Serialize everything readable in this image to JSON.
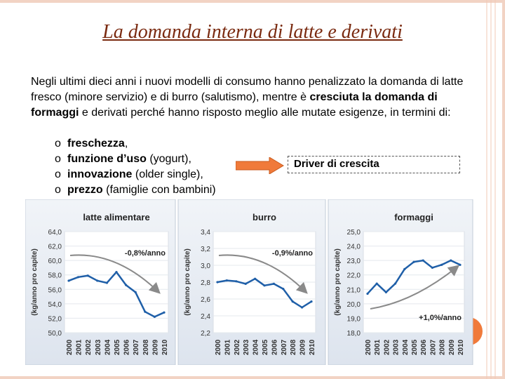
{
  "slide": {
    "title": "La domanda interna di latte e derivati",
    "paragraph": {
      "part1": "Negli ultimi dieci anni i nuovi modelli di consumo hanno penalizzato la domanda di latte fresco (minore servizio) e di burro (salutismo), mentre è ",
      "bold": "cresciuta la domanda di formaggi",
      "part2": " e derivati perché hanno risposto meglio alle mutate esigenze, in termini di:"
    },
    "bullets": [
      {
        "marker": "o",
        "bold": "freschezza",
        "rest": ","
      },
      {
        "marker": "o",
        "bold": "funzione d’uso",
        "rest": " (yogurt),"
      },
      {
        "marker": "o",
        "bold": "innovazione",
        "rest": " (older single),"
      },
      {
        "marker": "o",
        "bold": "prezzo",
        "rest": " (famiglie con bambini)"
      }
    ],
    "driver_label": "Driver di crescita",
    "colors": {
      "title": "#7a2a10",
      "arrow": "#f07a3a",
      "line": "#1f5fa8",
      "trend": "#8a8a8a",
      "frame": "#f2d3c4"
    }
  },
  "chart_data": [
    {
      "type": "line",
      "title": "latte alimentare",
      "ylabel": "(kg/anno pro capite)",
      "x": [
        "2000",
        "2001",
        "2002",
        "2003",
        "2004",
        "2005",
        "2006",
        "2007",
        "2008",
        "2009",
        "2010"
      ],
      "values": [
        57.2,
        57.7,
        57.9,
        57.2,
        56.9,
        58.4,
        56.6,
        55.6,
        52.9,
        52.2,
        52.8
      ],
      "ylim": [
        50.0,
        64.0
      ],
      "yticks": [
        "50,0",
        "52,0",
        "54,0",
        "56,0",
        "58,0",
        "60,0",
        "62,0",
        "64,0"
      ],
      "annotation": "-0,8%/anno",
      "trend": "down"
    },
    {
      "type": "line",
      "title": "burro",
      "ylabel": "(kg/anno pro capite)",
      "x": [
        "2000",
        "2001",
        "2002",
        "2003",
        "2004",
        "2005",
        "2006",
        "2007",
        "2008",
        "2009",
        "2010"
      ],
      "values": [
        2.8,
        2.82,
        2.81,
        2.78,
        2.84,
        2.76,
        2.78,
        2.72,
        2.57,
        2.5,
        2.57
      ],
      "ylim": [
        2.2,
        3.4
      ],
      "yticks": [
        "2,2",
        "2,4",
        "2,6",
        "2,8",
        "3,0",
        "3,2",
        "3,4"
      ],
      "annotation": "-0,9%/anno",
      "trend": "down"
    },
    {
      "type": "line",
      "title": "formaggi",
      "ylabel": "(kg/anno pro capite)",
      "x": [
        "2000",
        "2001",
        "2002",
        "2003",
        "2004",
        "2005",
        "2006",
        "2007",
        "2008",
        "2009",
        "2010"
      ],
      "values": [
        20.7,
        21.4,
        20.8,
        21.4,
        22.4,
        22.9,
        23.0,
        22.5,
        22.7,
        23.0,
        22.7
      ],
      "ylim": [
        18.0,
        25.0
      ],
      "yticks": [
        "18,0",
        "19,0",
        "20,0",
        "21,0",
        "22,0",
        "23,0",
        "24,0",
        "25,0"
      ],
      "annotation": "+1,0%/anno",
      "trend": "up"
    }
  ]
}
